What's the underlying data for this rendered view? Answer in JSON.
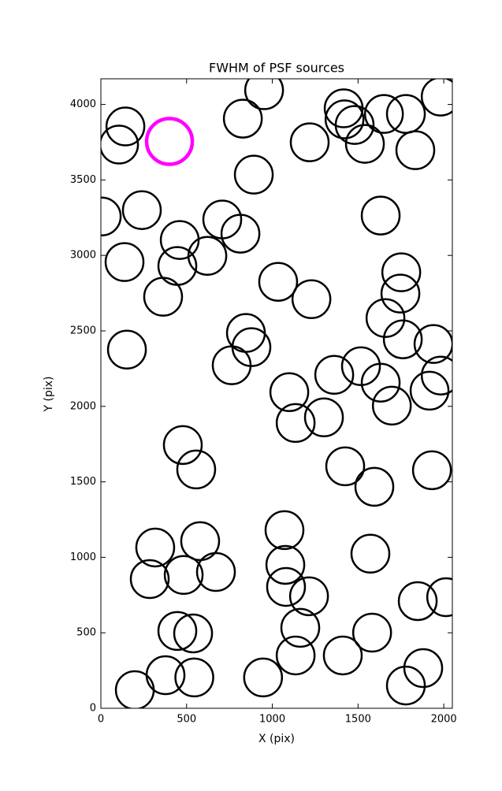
{
  "chart_data": {
    "type": "scatter",
    "title": "FWHM of PSF sources",
    "x_label": "X (pix)",
    "y_label": "Y (pix)",
    "xlim": [
      0,
      2050
    ],
    "ylim": [
      0,
      4170
    ],
    "xticks": [
      0,
      500,
      1000,
      1500,
      2000
    ],
    "yticks": [
      0,
      500,
      1000,
      1500,
      2000,
      2500,
      3000,
      3500,
      4000
    ],
    "series": [
      {
        "color": "#000000",
        "x": [
          198,
          377,
          545,
          946,
          446,
          538,
          285,
          483,
          317,
          579,
          671,
          1071,
          1076,
          1080,
          1214,
          1163,
          1136,
          1411,
          1582,
          1572,
          1848,
          2014,
          1880,
          1779,
          478,
          556,
          1425,
          1595,
          1931,
          763,
          846,
          878,
          1099,
          1136,
          1301,
          1361,
          1517,
          1632,
          1697,
          1917,
          1982,
          1940,
          1761,
          1660,
          1747,
          1752,
          1228,
          1034,
          152,
          363,
          446,
          460,
          621,
          708,
          814,
          138,
          5,
          239,
          1632,
          892,
          828,
          952,
          1218,
          106,
          143,
          1416,
          1421,
          1480,
          1540,
          1651,
          1779,
          1834,
          1982
        ],
        "values": [
          120,
          219,
          204,
          204,
          512,
          496,
          856,
          883,
          1065,
          1107,
          903,
          1180,
          950,
          804,
          742,
          533,
          350,
          350,
          501,
          1024,
          710,
          736,
          266,
          151,
          1744,
          1582,
          1603,
          1467,
          1577,
          2272,
          2486,
          2392,
          2094,
          1890,
          1927,
          2209,
          2266,
          2157,
          2005,
          2104,
          2204,
          2413,
          2444,
          2585,
          2747,
          2888,
          2710,
          2825,
          2376,
          2726,
          2930,
          3102,
          2997,
          3238,
          3144,
          2956,
          3258,
          3300,
          3264,
          3535,
          3906,
          4094,
          3749,
          3734,
          3854,
          3974,
          3901,
          3864,
          3739,
          3937,
          3937,
          3697,
          4052
        ]
      },
      {
        "color": "#ff00ff",
        "x": [
          400
        ],
        "values": [
          3755
        ]
      }
    ]
  }
}
